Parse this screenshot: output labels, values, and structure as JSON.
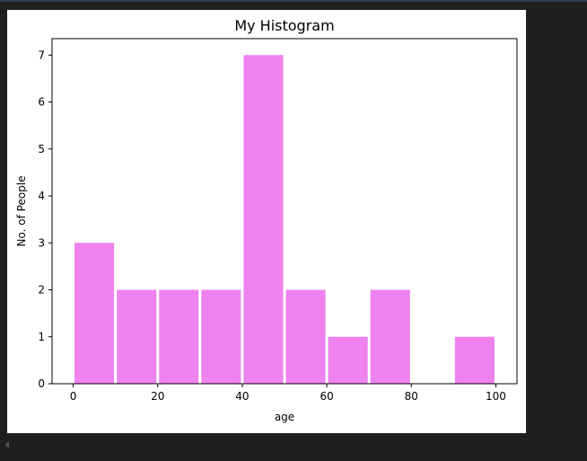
{
  "chart_data": {
    "type": "bar",
    "title": "My Histogram",
    "xlabel": "age",
    "ylabel": "No. of People",
    "bins": [
      {
        "start": 0,
        "end": 10,
        "count": 3
      },
      {
        "start": 10,
        "end": 20,
        "count": 2
      },
      {
        "start": 20,
        "end": 30,
        "count": 2
      },
      {
        "start": 30,
        "end": 40,
        "count": 2
      },
      {
        "start": 40,
        "end": 50,
        "count": 7
      },
      {
        "start": 50,
        "end": 60,
        "count": 2
      },
      {
        "start": 60,
        "end": 70,
        "count": 1
      },
      {
        "start": 70,
        "end": 80,
        "count": 2
      },
      {
        "start": 80,
        "end": 90,
        "count": 0
      },
      {
        "start": 90,
        "end": 100,
        "count": 1
      }
    ],
    "xlim": [
      -5,
      105
    ],
    "ylim": [
      0,
      7.35
    ],
    "xticks": [
      0,
      20,
      40,
      60,
      80,
      100
    ],
    "yticks": [
      0,
      1,
      2,
      3,
      4,
      5,
      6,
      7
    ],
    "bar_color": "#ee82ee",
    "grid": false
  }
}
